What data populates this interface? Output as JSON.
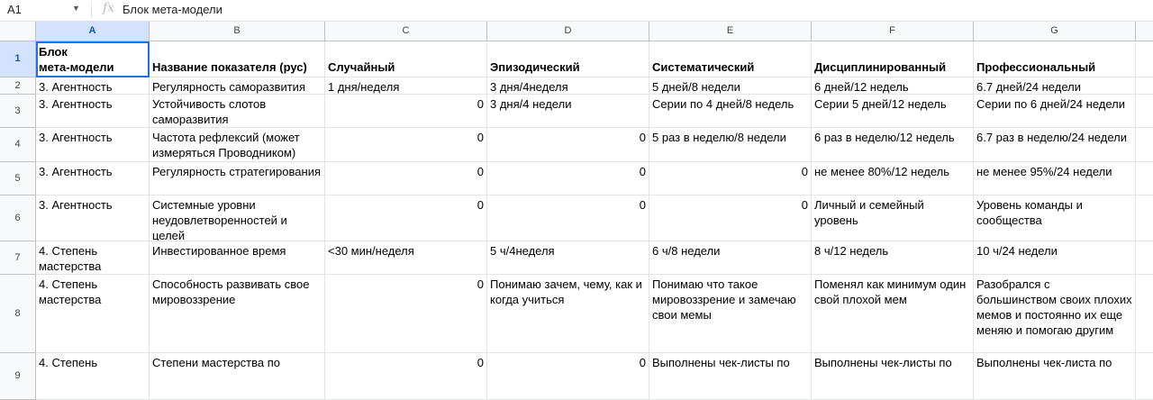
{
  "formula_bar": {
    "cell_ref": "A1",
    "fx_label": "fx",
    "value": "Блок мета-модели"
  },
  "columns": [
    "A",
    "B",
    "C",
    "D",
    "E",
    "F",
    "G",
    ""
  ],
  "selected_column": "A",
  "rows": [
    {
      "n": "1",
      "cells": [
        "Блок\nмета-модели",
        "Название показателя (рус)",
        "Случайный",
        "Эпизодический",
        "Систематический",
        "Дисциплинированный",
        "Профессиональный",
        ""
      ]
    },
    {
      "n": "2",
      "cells": [
        "3. Агентность",
        "Регулярность саморазвития",
        "1 дня/неделя",
        "3 дня/4неделя",
        "5 дней/8 недели",
        "6 дней/12 недель",
        "6.7 дней/24 недели",
        ""
      ]
    },
    {
      "n": "3",
      "cells": [
        "3. Агентность",
        "Устойчивость слотов саморазвития",
        "0",
        "3 дня/4 недели",
        "Серии по 4 дней/8 недель",
        "Серии 5 дней/12 недель",
        "Серии по 6 дней/24 недели",
        ""
      ]
    },
    {
      "n": "4",
      "cells": [
        "3. Агентность",
        "Частота рефлексий (может измеряться Проводником)",
        "0",
        "0",
        "5 раз в неделю/8 недели",
        "6 раз в неделю/12 недель",
        "6.7 раз в неделю/24 недели",
        ""
      ]
    },
    {
      "n": "5",
      "cells": [
        "3. Агентность",
        "Регулярность стратегирования",
        "0",
        "0",
        "0",
        "не менее 80%/12 недель",
        "не менее 95%/24 недели",
        ""
      ]
    },
    {
      "n": "6",
      "cells": [
        "3. Агентность",
        "Системные уровни неудовлетворенностей и целей",
        "0",
        "0",
        "0",
        "Личный и семейный уровень",
        "Уровень команды и сообщества",
        ""
      ]
    },
    {
      "n": "7",
      "cells": [
        "4. Степень мастерства",
        "Инвестированное время",
        "<30 мин/неделя",
        "5 ч/4неделя",
        "6 ч/8 недели",
        "8 ч/12 недель",
        "10 ч/24 недели",
        ""
      ]
    },
    {
      "n": "8",
      "cells": [
        "4. Степень мастерства",
        "Способность развивать свое мировоззрение",
        "0",
        "Понимаю зачем, чему, как и когда учиться",
        "Понимаю что такое мировоззрение и замечаю свои мемы",
        "Поменял как минимум один свой плохой мем",
        "Разобрался с большинством своих плохих мемов и постоянно их еще меняю и помогаю другим",
        ""
      ]
    },
    {
      "n": "9",
      "cells": [
        "4. Степень",
        "Степени мастерства по",
        "0",
        "0",
        "Выполнены чек-листы по",
        "Выполнены чек-листы по",
        "Выполнены чек-листа по",
        ""
      ]
    }
  ]
}
